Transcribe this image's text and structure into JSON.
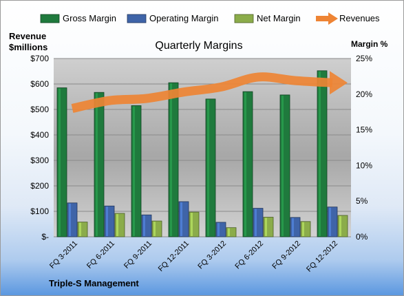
{
  "chart_data": {
    "type": "bar",
    "title": "Quarterly Margins",
    "left_axis_label": [
      "Revenue",
      "$millions"
    ],
    "right_axis_label": "Margin %",
    "footer": "Triple-S Management",
    "categories": [
      "FQ 3-2011",
      "FQ 6-2011",
      "FQ 9-2011",
      "FQ 12-2011",
      "FQ 3-2012",
      "FQ 6-2012",
      "FQ 9-2012",
      "FQ 12-2012"
    ],
    "left_ticks": [
      "$-",
      "$100",
      "$200",
      "$300",
      "$400",
      "$500",
      "$600",
      "$700"
    ],
    "right_ticks": [
      "0%",
      "5%",
      "10%",
      "15%",
      "20%",
      "25%"
    ],
    "ylim_left": [
      0,
      700
    ],
    "ylim_right": [
      0,
      25
    ],
    "series": [
      {
        "name": "Gross Margin",
        "axis": "left",
        "kind": "bar",
        "color": "#1f7a3d",
        "values": [
          585,
          567,
          515,
          605,
          541,
          570,
          557,
          652
        ]
      },
      {
        "name": "Operating Margin",
        "axis": "left",
        "kind": "bar",
        "color": "#3f64a8",
        "values": [
          133,
          121,
          86,
          138,
          57,
          112,
          76,
          117
        ]
      },
      {
        "name": "Net Margin",
        "axis": "left",
        "kind": "bar",
        "color": "#8bac4a",
        "values": [
          58,
          92,
          62,
          97,
          36,
          77,
          60,
          84
        ]
      },
      {
        "name": "Revenues",
        "axis": "right",
        "kind": "line",
        "color": "#ee8434",
        "values": [
          18.0,
          19.1,
          19.4,
          20.3,
          21.0,
          22.4,
          21.9,
          21.6
        ]
      }
    ]
  }
}
